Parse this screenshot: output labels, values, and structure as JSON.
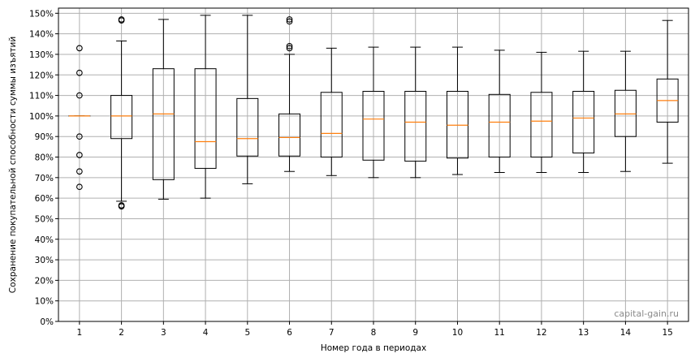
{
  "chart_data": {
    "type": "boxplot",
    "title": "",
    "xlabel": "Номер года в периодах",
    "ylabel": "Сохранение покупательной способности суммы изъятий",
    "ylim": [
      0,
      152.5
    ],
    "yticks": [
      0,
      10,
      20,
      30,
      40,
      50,
      60,
      70,
      80,
      90,
      100,
      110,
      120,
      130,
      140,
      150
    ],
    "ytick_suffix": "%",
    "grid": true,
    "watermark": "capital-gain.ru",
    "colors": {
      "box": "#000000",
      "median": "#ff7f0e",
      "grid": "#b0b0b0"
    },
    "categories": [
      "1",
      "2",
      "3",
      "4",
      "5",
      "6",
      "7",
      "8",
      "9",
      "10",
      "11",
      "12",
      "13",
      "14",
      "15"
    ],
    "boxes": [
      {
        "whislo": 100,
        "q1": 100,
        "med": 100,
        "q3": 100,
        "whishi": 100,
        "fliers": [
          65.5,
          73,
          81,
          90,
          110,
          121,
          133
        ]
      },
      {
        "whislo": 58.5,
        "q1": 89,
        "med": 100,
        "q3": 110,
        "whishi": 136.5,
        "fliers": [
          56,
          56.5,
          147,
          146.5
        ]
      },
      {
        "whislo": 59.5,
        "q1": 69,
        "med": 101,
        "q3": 123,
        "whishi": 147,
        "fliers": []
      },
      {
        "whislo": 60,
        "q1": 74.5,
        "med": 87.5,
        "q3": 123,
        "whishi": 149,
        "fliers": []
      },
      {
        "whislo": 67,
        "q1": 80.5,
        "med": 89,
        "q3": 108.5,
        "whishi": 149,
        "fliers": []
      },
      {
        "whislo": 73,
        "q1": 80.5,
        "med": 89.5,
        "q3": 101,
        "whishi": 130,
        "fliers": [
          133,
          134,
          146,
          147
        ]
      },
      {
        "whislo": 71,
        "q1": 80,
        "med": 91.5,
        "q3": 111.5,
        "whishi": 133,
        "fliers": []
      },
      {
        "whislo": 70,
        "q1": 78.5,
        "med": 98.5,
        "q3": 112,
        "whishi": 133.5,
        "fliers": []
      },
      {
        "whislo": 70,
        "q1": 78,
        "med": 97,
        "q3": 112,
        "whishi": 133.5,
        "fliers": []
      },
      {
        "whislo": 71.5,
        "q1": 79.5,
        "med": 95.5,
        "q3": 112,
        "whishi": 133.5,
        "fliers": []
      },
      {
        "whislo": 72.5,
        "q1": 80,
        "med": 97,
        "q3": 110.5,
        "whishi": 132,
        "fliers": []
      },
      {
        "whislo": 72.5,
        "q1": 80,
        "med": 97.5,
        "q3": 111.5,
        "whishi": 131,
        "fliers": []
      },
      {
        "whislo": 72.5,
        "q1": 82,
        "med": 99,
        "q3": 112,
        "whishi": 131.5,
        "fliers": []
      },
      {
        "whislo": 73,
        "q1": 90,
        "med": 101,
        "q3": 112.5,
        "whishi": 131.5,
        "fliers": []
      },
      {
        "whislo": 77,
        "q1": 97,
        "med": 107.5,
        "q3": 118,
        "whishi": 146.5,
        "fliers": []
      }
    ]
  }
}
